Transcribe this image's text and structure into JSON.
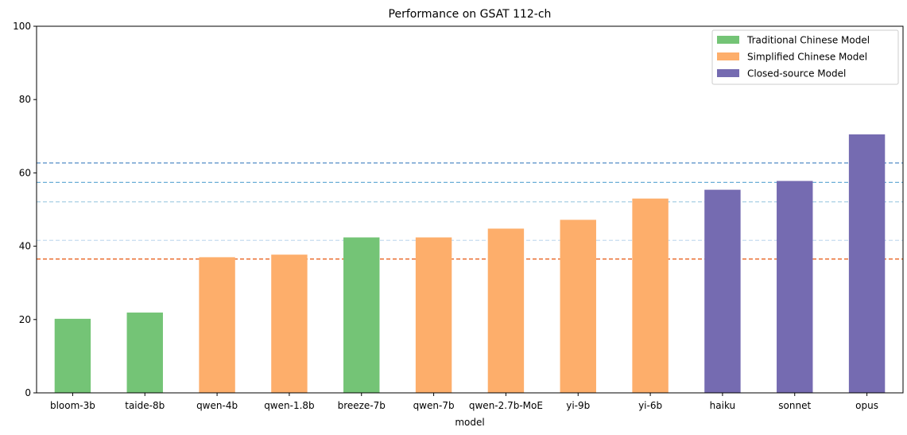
{
  "chart_data": {
    "type": "bar",
    "title": "Performance on GSAT 112-ch",
    "xlabel": "model",
    "ylabel": "",
    "ylim": [
      0,
      100
    ],
    "yticks": [
      0,
      20,
      40,
      60,
      80,
      100
    ],
    "categories": [
      "bloom-3b",
      "taide-8b",
      "qwen-4b",
      "qwen-1.8b",
      "breeze-7b",
      "qwen-7b",
      "qwen-2.7b-MoE",
      "yi-9b",
      "yi-6b",
      "haiku",
      "sonnet",
      "opus"
    ],
    "values": [
      20.2,
      21.9,
      37.0,
      37.7,
      42.4,
      42.4,
      44.8,
      47.2,
      53.0,
      55.4,
      57.8,
      70.5
    ],
    "groups": [
      "traditional",
      "traditional",
      "simplified",
      "simplified",
      "traditional",
      "simplified",
      "simplified",
      "simplified",
      "simplified",
      "closed",
      "closed",
      "closed"
    ],
    "legend": {
      "position": "top-right",
      "entries": [
        {
          "key": "traditional",
          "label": "Traditional Chinese Model",
          "color": "#74c476"
        },
        {
          "key": "simplified",
          "label": "Simplified Chinese Model",
          "color": "#fdae6b"
        },
        {
          "key": "closed",
          "label": "Closed-source Model",
          "color": "#756bb1"
        }
      ]
    },
    "reference_lines": [
      {
        "y": 62.7,
        "color": "#3f7fbf"
      },
      {
        "y": 57.4,
        "color": "#6aaed6"
      },
      {
        "y": 52.1,
        "color": "#9ecae1"
      },
      {
        "y": 41.6,
        "color": "#c6dbef"
      },
      {
        "y": 36.5,
        "color": "#e6550d"
      }
    ]
  }
}
